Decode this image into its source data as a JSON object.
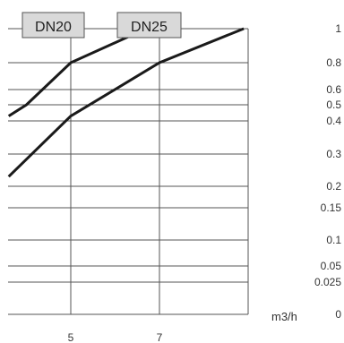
{
  "chart_data": {
    "type": "line",
    "title": "",
    "xlabel": "m3/h",
    "ylabel": "",
    "x_ticks": [
      {
        "value": 5,
        "label": "5"
      },
      {
        "value": 7,
        "label": "7"
      }
    ],
    "y_ticks": [
      {
        "value": 1,
        "label": "1"
      },
      {
        "value": 0.8,
        "label": "0.8"
      },
      {
        "value": 0.6,
        "label": "0.6"
      },
      {
        "value": 0.5,
        "label": "0.5"
      },
      {
        "value": 0.4,
        "label": "0.4"
      },
      {
        "value": 0.3,
        "label": "0.3"
      },
      {
        "value": 0.2,
        "label": "0.2"
      },
      {
        "value": 0.15,
        "label": "0.15"
      },
      {
        "value": 0.1,
        "label": "0.1"
      },
      {
        "value": 0.05,
        "label": "0.05"
      },
      {
        "value": 0.025,
        "label": "0.025"
      },
      {
        "value": 0,
        "label": "0"
      }
    ],
    "grid": true,
    "series": [
      {
        "name": "DN20",
        "color": "#1a1a1a",
        "x": [
          3.6,
          4.0,
          5.0,
          6.7
        ],
        "y": [
          0.43,
          0.5,
          0.8,
          1.0
        ]
      },
      {
        "name": "DN25",
        "color": "#1a1a1a",
        "x": [
          3.6,
          5.0,
          7.0,
          8.9
        ],
        "y": [
          0.23,
          0.43,
          0.8,
          1.0
        ]
      }
    ],
    "legend": {
      "position": "top",
      "label_fill": "#d9d9d9"
    }
  }
}
